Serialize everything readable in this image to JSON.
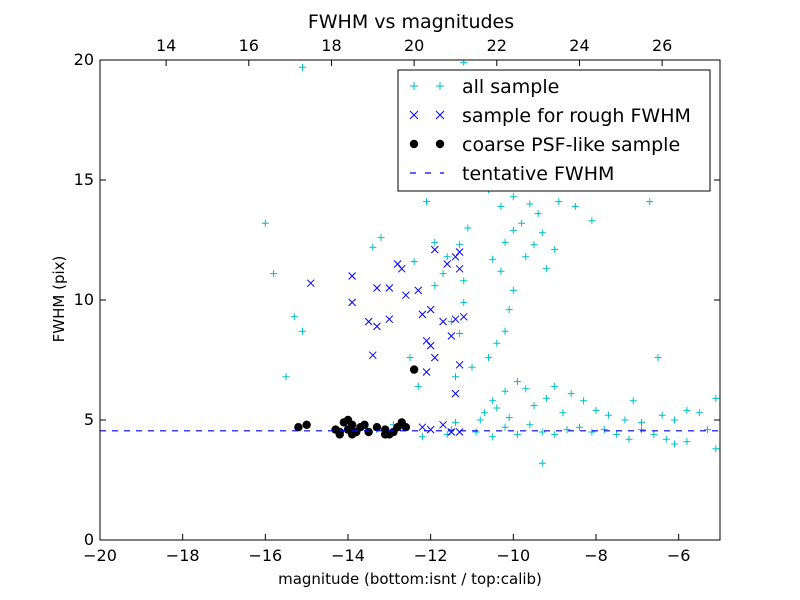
{
  "chart_data": {
    "type": "scatter",
    "title": "FWHM vs magnitudes",
    "xlabel": "magnitude (bottom:isnt / top:calib)",
    "ylabel": "FWHM (pix)",
    "xlim": [
      -20,
      -5
    ],
    "ylim": [
      0,
      20
    ],
    "top_xlim": [
      12.4,
      27.4
    ],
    "x_ticks": [
      -20,
      -18,
      -16,
      -14,
      -12,
      -10,
      -8,
      -6
    ],
    "y_ticks": [
      0,
      5,
      10,
      15,
      20
    ],
    "top_ticks": [
      14,
      16,
      18,
      20,
      22,
      24,
      26
    ],
    "x_tick_labels": [
      "−20",
      "−18",
      "−16",
      "−14",
      "−12",
      "−10",
      "−8",
      "−6"
    ],
    "y_tick_labels": [
      "0",
      "5",
      "10",
      "15",
      "20"
    ],
    "top_tick_labels": [
      "14",
      "16",
      "18",
      "20",
      "22",
      "24",
      "26"
    ],
    "grid": false,
    "legend_position": "top-right",
    "series": [
      {
        "name": "all sample",
        "marker": "plus",
        "color": "#00bfbf",
        "points": [
          [
            -15.1,
            19.7
          ],
          [
            -16.0,
            13.2
          ],
          [
            -15.8,
            11.1
          ],
          [
            -15.3,
            9.3
          ],
          [
            -15.1,
            8.7
          ],
          [
            -15.5,
            6.8
          ],
          [
            -13.4,
            12.2
          ],
          [
            -13.2,
            12.6
          ],
          [
            -12.4,
            11.6
          ],
          [
            -12.1,
            14.1
          ],
          [
            -11.9,
            12.4
          ],
          [
            -11.9,
            10.6
          ],
          [
            -11.6,
            11.8
          ],
          [
            -11.5,
            9.1
          ],
          [
            -11.2,
            10.8
          ],
          [
            -11.3,
            8.6
          ],
          [
            -11.4,
            6.8
          ],
          [
            -11.2,
            9.9
          ],
          [
            -11.0,
            7.2
          ],
          [
            -12.5,
            7.6
          ],
          [
            -12.3,
            6.4
          ],
          [
            -11.7,
            11.1
          ],
          [
            -11.3,
            12.3
          ],
          [
            -11.1,
            13.0
          ],
          [
            -11.2,
            19.9
          ],
          [
            -10.8,
            15.0
          ],
          [
            -10.6,
            14.6
          ],
          [
            -10.3,
            13.9
          ],
          [
            -10.0,
            14.3
          ],
          [
            -9.6,
            14.0
          ],
          [
            -9.4,
            13.6
          ],
          [
            -8.9,
            14.1
          ],
          [
            -8.5,
            13.9
          ],
          [
            -8.1,
            13.3
          ],
          [
            -6.7,
            14.1
          ],
          [
            -6.5,
            7.6
          ],
          [
            -9.3,
            3.2
          ],
          [
            -12.2,
            4.3
          ],
          [
            -12.9,
            4.8
          ],
          [
            -13.3,
            4.6
          ],
          [
            -11.6,
            4.4
          ],
          [
            -11.5,
            4.6
          ],
          [
            -11.4,
            4.9
          ],
          [
            -10.9,
            4.5
          ],
          [
            -10.5,
            4.3
          ],
          [
            -10.2,
            4.7
          ],
          [
            -9.9,
            4.4
          ],
          [
            -9.6,
            4.8
          ],
          [
            -9.3,
            4.5
          ],
          [
            -9.0,
            4.4
          ],
          [
            -8.7,
            4.6
          ],
          [
            -8.4,
            4.7
          ],
          [
            -8.1,
            4.5
          ],
          [
            -7.8,
            4.6
          ],
          [
            -7.5,
            4.4
          ],
          [
            -7.2,
            4.2
          ],
          [
            -6.9,
            4.6
          ],
          [
            -6.6,
            4.4
          ],
          [
            -6.3,
            4.2
          ],
          [
            -6.1,
            4.0
          ],
          [
            -5.8,
            4.1
          ],
          [
            -5.5,
            5.3
          ],
          [
            -5.3,
            4.6
          ],
          [
            -5.1,
            5.9
          ],
          [
            -5.1,
            3.8
          ],
          [
            -5.8,
            5.4
          ],
          [
            -6.1,
            5.0
          ],
          [
            -6.4,
            5.2
          ],
          [
            -6.9,
            4.9
          ],
          [
            -7.1,
            5.8
          ],
          [
            -7.3,
            5.0
          ],
          [
            -10.8,
            5.0
          ],
          [
            -10.7,
            5.3
          ],
          [
            -10.5,
            5.8
          ],
          [
            -10.4,
            5.5
          ],
          [
            -10.2,
            6.2
          ],
          [
            -10.1,
            5.1
          ],
          [
            -9.9,
            6.6
          ],
          [
            -9.7,
            6.3
          ],
          [
            -9.5,
            5.6
          ],
          [
            -9.2,
            5.9
          ],
          [
            -9.0,
            6.4
          ],
          [
            -8.8,
            5.3
          ],
          [
            -8.6,
            6.1
          ],
          [
            -8.3,
            5.8
          ],
          [
            -8.0,
            5.4
          ],
          [
            -7.7,
            5.2
          ],
          [
            -10.6,
            7.6
          ],
          [
            -10.4,
            8.2
          ],
          [
            -10.2,
            8.7
          ],
          [
            -10.1,
            9.6
          ],
          [
            -10.0,
            10.4
          ],
          [
            -10.3,
            11.2
          ],
          [
            -10.5,
            11.7
          ],
          [
            -10.2,
            12.4
          ],
          [
            -10.0,
            12.9
          ],
          [
            -9.8,
            13.2
          ],
          [
            -9.7,
            11.8
          ],
          [
            -9.5,
            12.3
          ],
          [
            -9.3,
            12.8
          ],
          [
            -9.2,
            11.3
          ],
          [
            -9.0,
            12.1
          ]
        ]
      },
      {
        "name": "sample for rough FWHM",
        "marker": "x",
        "color": "#0000ff",
        "points": [
          [
            -14.9,
            10.7
          ],
          [
            -13.9,
            11.0
          ],
          [
            -13.9,
            9.9
          ],
          [
            -13.3,
            10.5
          ],
          [
            -13.0,
            10.5
          ],
          [
            -13.0,
            9.2
          ],
          [
            -12.8,
            11.5
          ],
          [
            -12.6,
            10.2
          ],
          [
            -12.3,
            10.4
          ],
          [
            -12.2,
            9.4
          ],
          [
            -12.1,
            8.3
          ],
          [
            -12.0,
            8.1
          ],
          [
            -12.1,
            7.0
          ],
          [
            -11.9,
            7.6
          ],
          [
            -11.7,
            9.1
          ],
          [
            -11.6,
            11.5
          ],
          [
            -11.4,
            11.8
          ],
          [
            -11.3,
            12.0
          ],
          [
            -11.4,
            9.2
          ],
          [
            -11.2,
            9.3
          ],
          [
            -11.4,
            6.1
          ],
          [
            -11.3,
            7.3
          ],
          [
            -13.5,
            9.1
          ],
          [
            -13.3,
            8.9
          ],
          [
            -13.4,
            7.7
          ],
          [
            -12.7,
            11.3
          ],
          [
            -11.9,
            12.1
          ],
          [
            -11.3,
            11.3
          ],
          [
            -11.5,
            8.5
          ],
          [
            -12.0,
            9.6
          ],
          [
            -11.5,
            4.5
          ],
          [
            -11.3,
            4.5
          ],
          [
            -11.7,
            4.8
          ],
          [
            -12.0,
            4.6
          ],
          [
            -12.2,
            4.7
          ]
        ]
      },
      {
        "name": "coarse PSF-like sample",
        "marker": "circle",
        "color": "#000000",
        "points": [
          [
            -15.2,
            4.7
          ],
          [
            -15.0,
            4.8
          ],
          [
            -14.3,
            4.6
          ],
          [
            -14.2,
            4.5
          ],
          [
            -14.1,
            4.9
          ],
          [
            -14.0,
            5.0
          ],
          [
            -13.9,
            4.8
          ],
          [
            -13.9,
            4.4
          ],
          [
            -13.8,
            4.5
          ],
          [
            -13.7,
            4.7
          ],
          [
            -13.5,
            4.5
          ],
          [
            -13.3,
            4.7
          ],
          [
            -13.1,
            4.6
          ],
          [
            -13.0,
            4.4
          ],
          [
            -12.9,
            4.5
          ],
          [
            -12.7,
            4.9
          ],
          [
            -12.6,
            4.7
          ],
          [
            -12.4,
            7.1
          ],
          [
            -14.2,
            4.4
          ],
          [
            -14.0,
            4.6
          ],
          [
            -13.6,
            4.8
          ],
          [
            -12.8,
            4.7
          ],
          [
            -13.1,
            4.4
          ],
          [
            -13.9,
            4.5
          ]
        ]
      },
      {
        "name": "tentative FWHM",
        "marker": "dashed-line",
        "color": "#0000ff",
        "value": 4.55
      }
    ]
  }
}
